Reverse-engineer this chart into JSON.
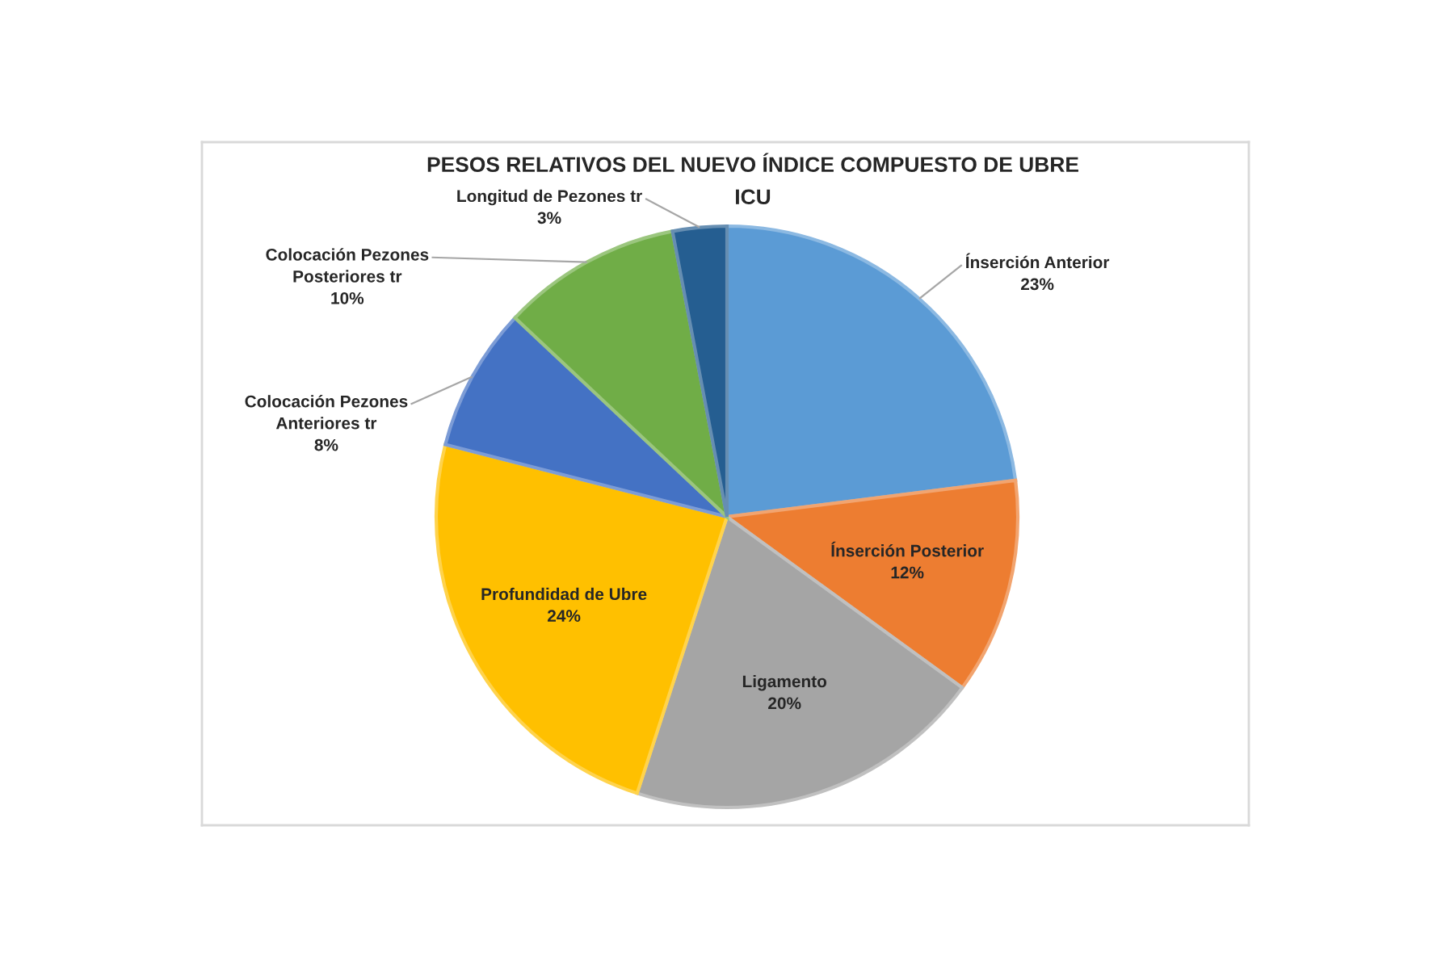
{
  "chart_data": {
    "type": "pie",
    "title": "PESOS RELATIVOS DEL NUEVO ÍNDICE COMPUESTO DE UBRE",
    "subtitle": "ICU",
    "categories": [
      "Ínserción Anterior",
      "Ínserción Posterior",
      "Ligamento",
      "Profundidad de Ubre",
      "Colocación Pezones\nAnteriores tr",
      "Colocación Pezones\nPosteriores tr",
      "Longitud de Pezones tr"
    ],
    "values": [
      23,
      12,
      20,
      24,
      8,
      10,
      3
    ],
    "colors": [
      "#5b9bd5",
      "#ed7d31",
      "#a5a5a5",
      "#ffc000",
      "#4472c4",
      "#70ad47",
      "#255e91"
    ],
    "value_labels": [
      "23%",
      "12%",
      "20%",
      "24%",
      "8%",
      "10%",
      "3%"
    ]
  }
}
